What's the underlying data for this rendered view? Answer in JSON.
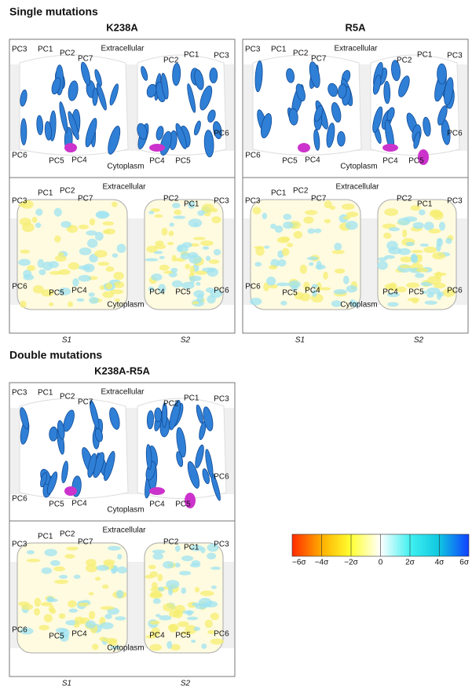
{
  "sections": [
    {
      "title": "Single mutations",
      "panels": [
        {
          "title": "K238A",
          "top_labels": [
            "PC3",
            "PC1",
            "PC2",
            "PC7",
            "Extracellular",
            "PC2",
            "PC1",
            "PC3",
            "PC6",
            "PC6",
            "PC5",
            "PC4",
            "Cytoplasm",
            "PC4",
            "PC5"
          ],
          "bottom_labels": [
            "PC3",
            "PC1",
            "PC2",
            "PC7",
            "Extracellular",
            "PC2",
            "PC1",
            "PC3",
            "PC6",
            "PC6",
            "PC5",
            "PC4",
            "Cytoplasm",
            "PC4",
            "PC5"
          ],
          "subunits": [
            "S1",
            "S2"
          ]
        },
        {
          "title": "R5A",
          "top_labels": [
            "PC3",
            "PC1",
            "PC2",
            "PC7",
            "Extracellular",
            "PC2",
            "PC1",
            "PC3",
            "PC6",
            "PC6",
            "PC5",
            "PC4",
            "Cytoplasm",
            "PC4",
            "PC5"
          ],
          "bottom_labels": [
            "PC3",
            "PC1",
            "PC2",
            "PC7",
            "Extracellular",
            "PC2",
            "PC1",
            "PC3",
            "PC6",
            "PC6",
            "PC5",
            "PC4",
            "Cytoplasm",
            "PC4",
            "PC5"
          ],
          "subunits": [
            "S1",
            "S2"
          ]
        }
      ]
    },
    {
      "title": "Double mutations",
      "panels": [
        {
          "title": "K238A-R5A",
          "top_labels": [
            "PC3",
            "PC1",
            "PC2",
            "PC7",
            "Extracellular",
            "PC2",
            "PC1",
            "PC3",
            "PC6",
            "PC6",
            "PC5",
            "PC4",
            "Cytoplasm",
            "PC4",
            "PC5"
          ],
          "bottom_labels": [
            "PC3",
            "PC1",
            "PC2",
            "PC7",
            "Extracellular",
            "PC2",
            "PC1",
            "PC3",
            "PC6",
            "PC6",
            "PC5",
            "PC4",
            "Cytoplasm",
            "PC4",
            "PC5"
          ],
          "subunits": [
            "S1",
            "S2"
          ]
        }
      ]
    }
  ],
  "colorbar": {
    "labels": [
      "−6σ",
      "−4σ",
      "−2σ",
      "0",
      "2σ",
      "4σ",
      "6σ"
    ]
  }
}
